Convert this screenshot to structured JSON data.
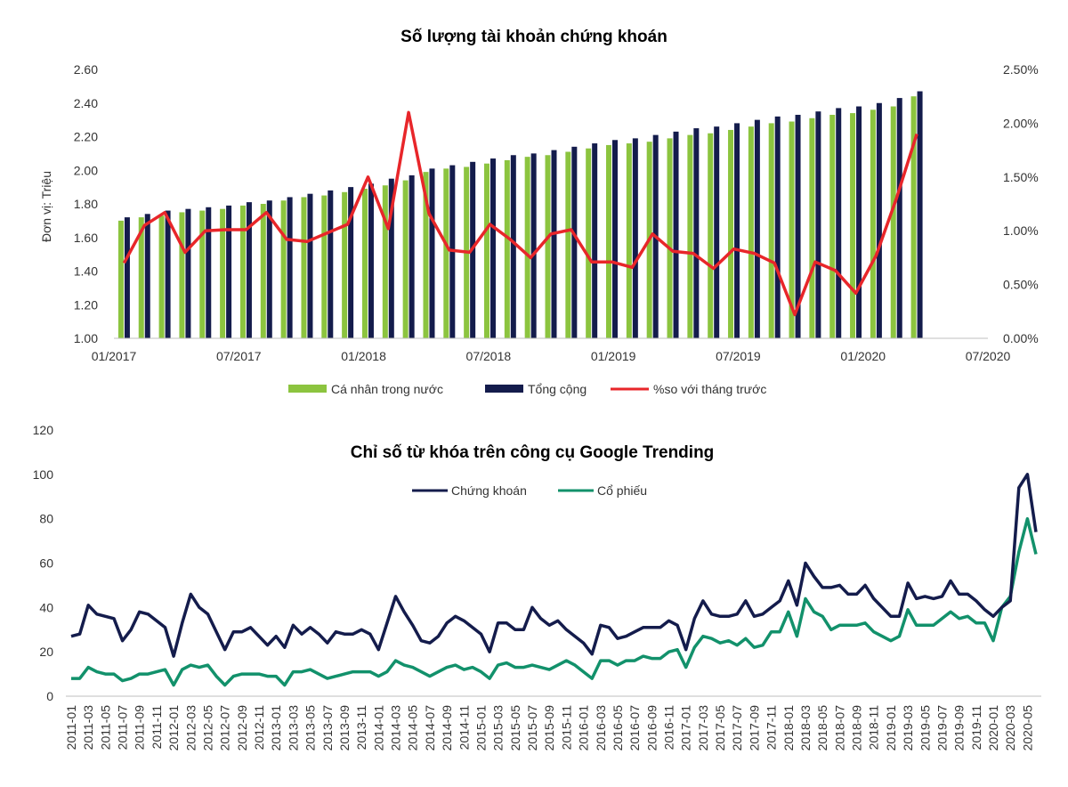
{
  "chart_data": [
    {
      "type": "bar",
      "title": "Số lượng tài khoản chứng khoán",
      "ylabel": "Đơn vị: Triệu",
      "ylim": [
        1.0,
        2.6
      ],
      "y_ticks": [
        "1.00",
        "1.20",
        "1.40",
        "1.60",
        "1.80",
        "2.00",
        "2.20",
        "2.40",
        "2.60"
      ],
      "y2lim": [
        0,
        2.5
      ],
      "y2_ticks": [
        "0.00%",
        "0.50%",
        "1.00%",
        "1.50%",
        "2.00%",
        "2.50%"
      ],
      "x_ticks": [
        "01/2017",
        "07/2017",
        "01/2018",
        "07/2018",
        "01/2019",
        "07/2019",
        "01/2020",
        "07/2020"
      ],
      "months": 40,
      "series": [
        {
          "name": "Cá nhân trong nước",
          "color": "#8cc43f",
          "kind": "bar",
          "values": [
            1.7,
            1.72,
            1.73,
            1.75,
            1.76,
            1.77,
            1.79,
            1.8,
            1.82,
            1.84,
            1.85,
            1.87,
            1.89,
            1.91,
            1.94,
            1.99,
            2.01,
            2.02,
            2.04,
            2.06,
            2.08,
            2.09,
            2.11,
            2.13,
            2.15,
            2.16,
            2.17,
            2.19,
            2.21,
            2.22,
            2.24,
            2.26,
            2.28,
            2.29,
            2.31,
            2.33,
            2.34,
            2.36,
            2.38,
            2.44
          ]
        },
        {
          "name": "Tổng cộng",
          "color": "#141c4c",
          "kind": "bar",
          "values": [
            1.72,
            1.74,
            1.76,
            1.77,
            1.78,
            1.79,
            1.81,
            1.82,
            1.84,
            1.86,
            1.88,
            1.9,
            1.92,
            1.95,
            1.97,
            2.01,
            2.03,
            2.05,
            2.07,
            2.09,
            2.1,
            2.12,
            2.14,
            2.16,
            2.18,
            2.19,
            2.21,
            2.23,
            2.25,
            2.26,
            2.28,
            2.3,
            2.32,
            2.33,
            2.35,
            2.37,
            2.38,
            2.4,
            2.43,
            2.47
          ]
        },
        {
          "name": "%so với tháng trước",
          "color": "#e8262a",
          "kind": "line",
          "unit": "%",
          "values": [
            0.7,
            1.05,
            1.17,
            0.8,
            1.0,
            1.01,
            1.01,
            1.17,
            0.92,
            0.9,
            0.98,
            1.06,
            1.5,
            1.02,
            2.1,
            1.16,
            0.82,
            0.8,
            1.06,
            0.92,
            0.75,
            0.97,
            1.01,
            0.71,
            0.71,
            0.66,
            0.97,
            0.81,
            0.79,
            0.65,
            0.83,
            0.79,
            0.7,
            0.22,
            0.71,
            0.63,
            0.42,
            0.77,
            1.3,
            1.9
          ]
        }
      ]
    },
    {
      "type": "line",
      "title": "Chỉ số từ khóa trên công cụ Google Trending",
      "ylim": [
        0,
        120
      ],
      "y_ticks": [
        "0",
        "20",
        "40",
        "60",
        "80",
        "100",
        "120"
      ],
      "x_ticks": [
        "2011-01",
        "2011-03",
        "2011-05",
        "2011-07",
        "2011-09",
        "2011-11",
        "2012-01",
        "2012-03",
        "2012-05",
        "2012-07",
        "2012-09",
        "2012-11",
        "2013-01",
        "2013-03",
        "2013-05",
        "2013-07",
        "2013-09",
        "2013-11",
        "2014-01",
        "2014-03",
        "2014-05",
        "2014-07",
        "2014-09",
        "2014-11",
        "2015-01",
        "2015-03",
        "2015-05",
        "2015-07",
        "2015-09",
        "2015-11",
        "2016-01",
        "2016-03",
        "2016-05",
        "2016-07",
        "2016-09",
        "2016-11",
        "2017-01",
        "2017-03",
        "2017-05",
        "2017-07",
        "2017-09",
        "2017-11",
        "2018-01",
        "2018-03",
        "2018-05",
        "2018-07",
        "2018-09",
        "2018-11",
        "2019-01",
        "2019-03",
        "2019-05",
        "2019-07",
        "2019-09",
        "2019-11",
        "2020-01",
        "2020-03",
        "2020-05"
      ],
      "series": [
        {
          "name": "Chứng khoán",
          "color": "#141c4c",
          "values": [
            27,
            28,
            41,
            37,
            36,
            35,
            25,
            30,
            38,
            37,
            34,
            31,
            18,
            33,
            46,
            40,
            37,
            29,
            21,
            29,
            29,
            31,
            27,
            23,
            27,
            22,
            32,
            28,
            31,
            28,
            24,
            29,
            28,
            28,
            30,
            28,
            21,
            33,
            45,
            38,
            32,
            25,
            24,
            27,
            33,
            36,
            34,
            31,
            28,
            20,
            33,
            33,
            30,
            30,
            40,
            35,
            32,
            34,
            30,
            27,
            24,
            19,
            32,
            31,
            26,
            27,
            29,
            31,
            31,
            31,
            34,
            32,
            21,
            35,
            43,
            37,
            36,
            36,
            37,
            43,
            36,
            37,
            40,
            43,
            52,
            41,
            60,
            54,
            49,
            49,
            50,
            46,
            46,
            50,
            44,
            40,
            36,
            36,
            51,
            44,
            45,
            44,
            45,
            52,
            46,
            46,
            43,
            39,
            36,
            40,
            43,
            94,
            100,
            74
          ]
        },
        {
          "name": "Cổ phiếu",
          "color": "#12916b",
          "values": [
            8,
            8,
            13,
            11,
            10,
            10,
            7,
            8,
            10,
            10,
            11,
            12,
            5,
            12,
            14,
            13,
            14,
            9,
            5,
            9,
            10,
            10,
            10,
            9,
            9,
            5,
            11,
            11,
            12,
            10,
            8,
            9,
            10,
            11,
            11,
            11,
            9,
            11,
            16,
            14,
            13,
            11,
            9,
            11,
            13,
            14,
            12,
            13,
            11,
            8,
            14,
            15,
            13,
            13,
            14,
            13,
            12,
            14,
            16,
            14,
            11,
            8,
            16,
            16,
            14,
            16,
            16,
            18,
            17,
            17,
            20,
            21,
            13,
            22,
            27,
            26,
            24,
            25,
            23,
            26,
            22,
            23,
            29,
            29,
            38,
            27,
            44,
            38,
            36,
            30,
            32,
            32,
            32,
            33,
            29,
            27,
            25,
            27,
            39,
            32,
            32,
            32,
            35,
            38,
            35,
            36,
            33,
            33,
            25,
            40,
            45,
            65,
            80,
            64
          ]
        }
      ]
    }
  ]
}
